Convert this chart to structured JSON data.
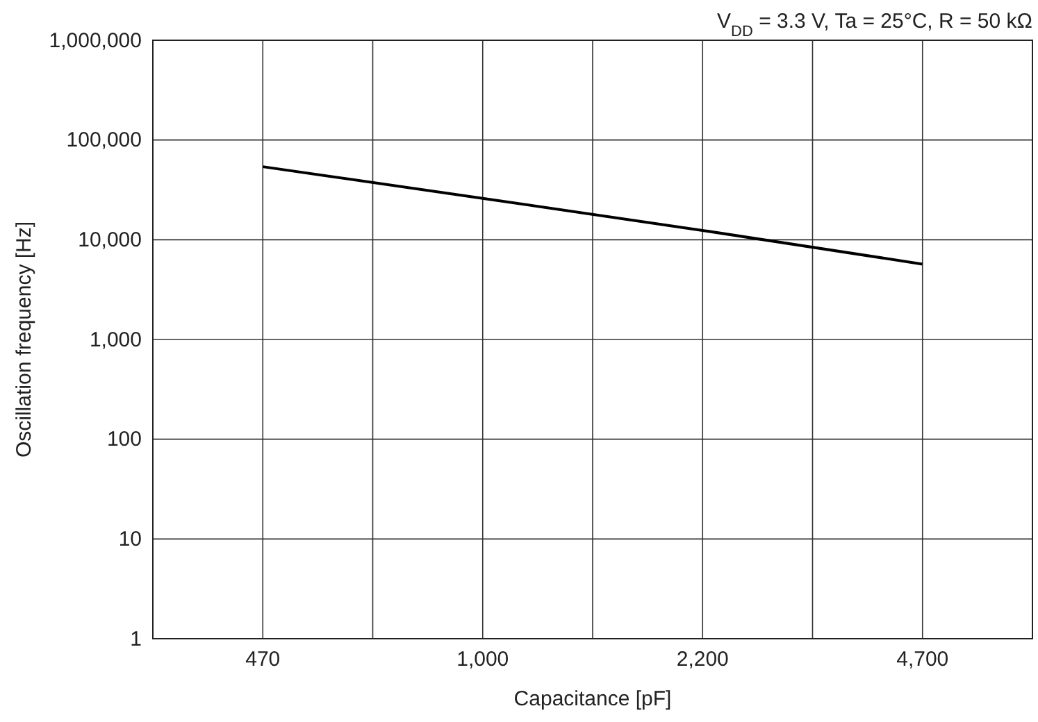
{
  "chart_data": {
    "type": "line",
    "xlabel": "Capacitance [pF]",
    "ylabel": "Oscillation frequency [Hz]",
    "annotations": [
      "V$_{DD}$ = 3.3 V, Ta = 25°C, R = 50 kΩ"
    ],
    "categories": [
      "470",
      "1,000",
      "2,200",
      "4,700"
    ],
    "series": [
      {
        "color": "#000000",
        "values": [
          54000,
          26000,
          12400,
          5700
        ]
      }
    ],
    "log": "y",
    "ylim": [
      1,
      1000000
    ],
    "yticks": [
      1,
      10,
      100,
      {
        "value": 1000,
        "label": "1,000"
      },
      {
        "value": 10000,
        "label": "10,000"
      },
      {
        "value": 100000,
        "label": "100,000"
      },
      {
        "value": 1000000,
        "label": "1,000,000"
      }
    ],
    "grid": true
  }
}
